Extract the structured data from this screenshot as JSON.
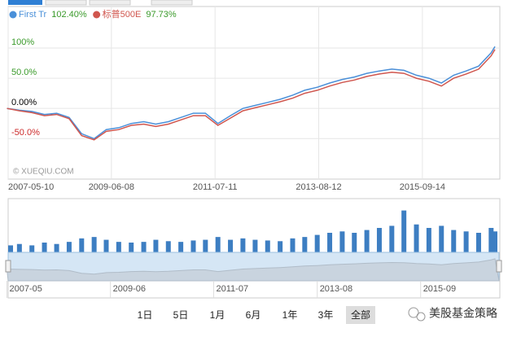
{
  "chart_data": [
    {
      "type": "line",
      "x": [
        "2007-05",
        "2007-08",
        "2007-11",
        "2008-02",
        "2008-05",
        "2008-08",
        "2008-11",
        "2009-02",
        "2009-05",
        "2009-08",
        "2009-11",
        "2010-02",
        "2010-05",
        "2010-08",
        "2010-11",
        "2011-02",
        "2011-05",
        "2011-08",
        "2011-11",
        "2012-02",
        "2012-05",
        "2012-08",
        "2012-11",
        "2013-02",
        "2013-05",
        "2013-08",
        "2013-11",
        "2014-02",
        "2014-05",
        "2014-08",
        "2014-11",
        "2015-02",
        "2015-05",
        "2015-08",
        "2015-11",
        "2016-02",
        "2016-05",
        "2016-08",
        "2016-11",
        "2017-02",
        "2017-03"
      ],
      "series": [
        {
          "name": "First Tr",
          "color": "#4a90d9",
          "legend_value": {
            "value": 102.4,
            "label": "102.40%"
          },
          "values": [
            0,
            -3,
            -5,
            -10,
            -8,
            -15,
            -42,
            -50,
            -35,
            -32,
            -25,
            -22,
            -26,
            -22,
            -15,
            -8,
            -8,
            -25,
            -12,
            0,
            5,
            10,
            15,
            22,
            30,
            35,
            42,
            48,
            52,
            58,
            62,
            65,
            63,
            55,
            50,
            42,
            55,
            62,
            70,
            92,
            102.4
          ]
        },
        {
          "name": "标普500E",
          "color": "#d0564e",
          "legend_value": {
            "value": 97.73,
            "label": "97.73%"
          },
          "values": [
            0,
            -4,
            -7,
            -12,
            -10,
            -17,
            -45,
            -52,
            -38,
            -35,
            -28,
            -26,
            -30,
            -26,
            -19,
            -12,
            -12,
            -28,
            -16,
            -4,
            1,
            6,
            11,
            17,
            25,
            30,
            37,
            43,
            47,
            53,
            57,
            60,
            58,
            50,
            45,
            37,
            50,
            57,
            65,
            87,
            97.73
          ]
        }
      ],
      "xlim": [
        "2007-05-10",
        "2017-03-31"
      ],
      "xticks": [
        "2007-05-10",
        "2009-06-08",
        "2011-07-11",
        "2013-08-12",
        "2015-09-14"
      ],
      "ylim": [
        -117,
        166
      ],
      "yticks": [
        {
          "value": 100,
          "label": "100%"
        },
        {
          "value": 50,
          "label": "50.0%"
        },
        {
          "value": 0,
          "label": "0.00%"
        },
        {
          "value": -50,
          "label": "-50.0%"
        }
      ],
      "grid": true,
      "annotation": "© XUEQIU.COM"
    },
    {
      "type": "bar",
      "x": [
        "2007-05",
        "2007-08",
        "2007-11",
        "2008-02",
        "2008-05",
        "2008-08",
        "2008-11",
        "2009-02",
        "2009-05",
        "2009-08",
        "2009-11",
        "2010-02",
        "2010-05",
        "2010-08",
        "2010-11",
        "2011-02",
        "2011-05",
        "2011-08",
        "2011-11",
        "2012-02",
        "2012-05",
        "2012-08",
        "2012-11",
        "2013-02",
        "2013-05",
        "2013-08",
        "2013-11",
        "2014-02",
        "2014-05",
        "2014-08",
        "2014-11",
        "2015-02",
        "2015-05",
        "2015-08",
        "2015-11",
        "2016-02",
        "2016-05",
        "2016-08",
        "2016-11",
        "2017-02",
        "2017-03"
      ],
      "values": [
        10,
        12,
        10,
        14,
        12,
        15,
        20,
        22,
        18,
        15,
        14,
        15,
        18,
        16,
        15,
        17,
        18,
        22,
        18,
        20,
        18,
        17,
        16,
        20,
        22,
        25,
        28,
        30,
        28,
        32,
        35,
        38,
        60,
        40,
        35,
        38,
        32,
        30,
        28,
        35,
        30
      ],
      "color": "#3d7ec2",
      "xlim": [
        "2007-05-10",
        "2017-03-31"
      ],
      "ylim": [
        0,
        70
      ],
      "xticks": [
        "2007-05",
        "2009-06",
        "2011-07",
        "2013-08",
        "2015-09"
      ]
    }
  ],
  "range_buttons": [
    "1日",
    "5日",
    "1月",
    "6月",
    "1年",
    "3年",
    "全部"
  ],
  "watermark": "美股基金策略"
}
